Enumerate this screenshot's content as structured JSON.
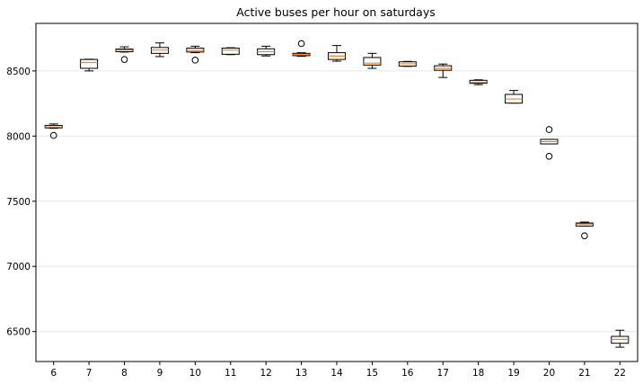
{
  "chart_data": {
    "type": "box",
    "title": "Active buses per hour on saturdays",
    "xlabel": "",
    "ylabel": "",
    "ylim": [
      6270,
      8865
    ],
    "yticks": [
      6500,
      7000,
      7500,
      8000,
      8500
    ],
    "grid": "horizontal",
    "colors": {
      "box_edge": "#000000",
      "median": "#ff7f0e",
      "grid": "#e6e6e6",
      "axis": "#000000"
    },
    "categories": [
      "6",
      "7",
      "8",
      "9",
      "10",
      "11",
      "12",
      "13",
      "14",
      "15",
      "16",
      "17",
      "18",
      "19",
      "20",
      "21",
      "22"
    ],
    "boxes": [
      {
        "label": "6",
        "whislo": 8060,
        "q1": 8063,
        "med": 8070,
        "q3": 8082,
        "whishi": 8093,
        "fliers": [
          8005
        ]
      },
      {
        "label": "7",
        "whislo": 8500,
        "q1": 8520,
        "med": 8565,
        "q3": 8588,
        "whishi": 8590,
        "fliers": []
      },
      {
        "label": "8",
        "whislo": 8645,
        "q1": 8648,
        "med": 8660,
        "q3": 8668,
        "whishi": 8685,
        "fliers": [
          8588
        ]
      },
      {
        "label": "9",
        "whislo": 8610,
        "q1": 8635,
        "med": 8660,
        "q3": 8680,
        "whishi": 8715,
        "fliers": []
      },
      {
        "label": "10",
        "whislo": 8640,
        "q1": 8645,
        "med": 8658,
        "q3": 8675,
        "whishi": 8690,
        "fliers": [
          8583
        ]
      },
      {
        "label": "11",
        "whislo": 8625,
        "q1": 8628,
        "med": 8660,
        "q3": 8675,
        "whishi": 8678,
        "fliers": []
      },
      {
        "label": "12",
        "whislo": 8615,
        "q1": 8625,
        "med": 8648,
        "q3": 8670,
        "whishi": 8690,
        "fliers": []
      },
      {
        "label": "13",
        "whislo": 8612,
        "q1": 8617,
        "med": 8625,
        "q3": 8635,
        "whishi": 8640,
        "fliers": [
          8710
        ]
      },
      {
        "label": "14",
        "whislo": 8575,
        "q1": 8588,
        "med": 8615,
        "q3": 8640,
        "whishi": 8695,
        "fliers": []
      },
      {
        "label": "15",
        "whislo": 8520,
        "q1": 8545,
        "med": 8560,
        "q3": 8603,
        "whishi": 8635,
        "fliers": []
      },
      {
        "label": "16",
        "whislo": 8535,
        "q1": 8537,
        "med": 8555,
        "q3": 8570,
        "whishi": 8573,
        "fliers": []
      },
      {
        "label": "17",
        "whislo": 8450,
        "q1": 8505,
        "med": 8520,
        "q3": 8540,
        "whishi": 8553,
        "fliers": []
      },
      {
        "label": "18",
        "whislo": 8395,
        "q1": 8405,
        "med": 8413,
        "q3": 8428,
        "whishi": 8432,
        "fliers": []
      },
      {
        "label": "19",
        "whislo": 8253,
        "q1": 8253,
        "med": 8285,
        "q3": 8320,
        "whishi": 8350,
        "fliers": []
      },
      {
        "label": "20",
        "whislo": 7940,
        "q1": 7940,
        "med": 7958,
        "q3": 7975,
        "whishi": 7975,
        "fliers": [
          8050,
          7845
        ]
      },
      {
        "label": "21",
        "whislo": 7310,
        "q1": 7310,
        "med": 7325,
        "q3": 7333,
        "whishi": 7340,
        "fliers": [
          7235
        ]
      },
      {
        "label": "22",
        "whislo": 6380,
        "q1": 6410,
        "med": 6440,
        "q3": 6463,
        "whishi": 6510,
        "fliers": []
      }
    ]
  }
}
